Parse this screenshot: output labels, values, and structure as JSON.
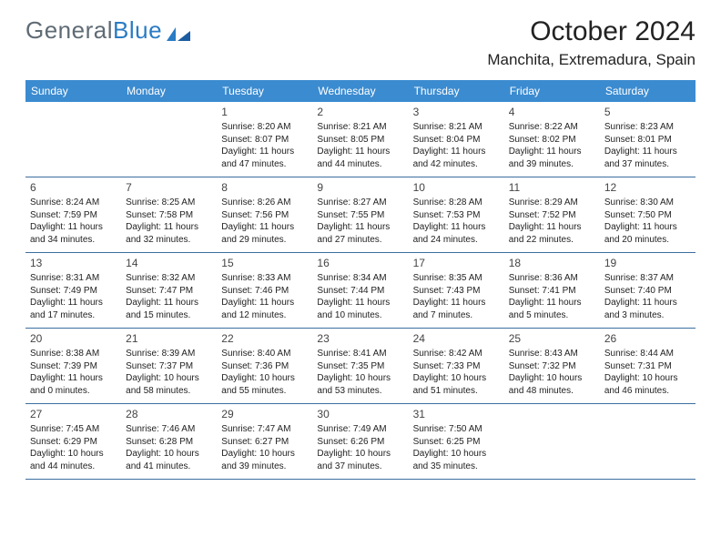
{
  "brand": {
    "part1": "General",
    "part2": "Blue"
  },
  "title": "October 2024",
  "location": "Manchita, Extremadura, Spain",
  "colors": {
    "header_bg": "#3b8bd0",
    "header_text": "#ffffff",
    "row_border": "#3b6ea0",
    "brand_gray": "#5f6b74",
    "brand_blue": "#2a7cc4",
    "text": "#222222",
    "background": "#ffffff"
  },
  "dow": [
    "Sunday",
    "Monday",
    "Tuesday",
    "Wednesday",
    "Thursday",
    "Friday",
    "Saturday"
  ],
  "weeks": [
    [
      null,
      null,
      {
        "n": "1",
        "sr": "8:20 AM",
        "ss": "8:07 PM",
        "dl": "11 hours and 47 minutes."
      },
      {
        "n": "2",
        "sr": "8:21 AM",
        "ss": "8:05 PM",
        "dl": "11 hours and 44 minutes."
      },
      {
        "n": "3",
        "sr": "8:21 AM",
        "ss": "8:04 PM",
        "dl": "11 hours and 42 minutes."
      },
      {
        "n": "4",
        "sr": "8:22 AM",
        "ss": "8:02 PM",
        "dl": "11 hours and 39 minutes."
      },
      {
        "n": "5",
        "sr": "8:23 AM",
        "ss": "8:01 PM",
        "dl": "11 hours and 37 minutes."
      }
    ],
    [
      {
        "n": "6",
        "sr": "8:24 AM",
        "ss": "7:59 PM",
        "dl": "11 hours and 34 minutes."
      },
      {
        "n": "7",
        "sr": "8:25 AM",
        "ss": "7:58 PM",
        "dl": "11 hours and 32 minutes."
      },
      {
        "n": "8",
        "sr": "8:26 AM",
        "ss": "7:56 PM",
        "dl": "11 hours and 29 minutes."
      },
      {
        "n": "9",
        "sr": "8:27 AM",
        "ss": "7:55 PM",
        "dl": "11 hours and 27 minutes."
      },
      {
        "n": "10",
        "sr": "8:28 AM",
        "ss": "7:53 PM",
        "dl": "11 hours and 24 minutes."
      },
      {
        "n": "11",
        "sr": "8:29 AM",
        "ss": "7:52 PM",
        "dl": "11 hours and 22 minutes."
      },
      {
        "n": "12",
        "sr": "8:30 AM",
        "ss": "7:50 PM",
        "dl": "11 hours and 20 minutes."
      }
    ],
    [
      {
        "n": "13",
        "sr": "8:31 AM",
        "ss": "7:49 PM",
        "dl": "11 hours and 17 minutes."
      },
      {
        "n": "14",
        "sr": "8:32 AM",
        "ss": "7:47 PM",
        "dl": "11 hours and 15 minutes."
      },
      {
        "n": "15",
        "sr": "8:33 AM",
        "ss": "7:46 PM",
        "dl": "11 hours and 12 minutes."
      },
      {
        "n": "16",
        "sr": "8:34 AM",
        "ss": "7:44 PM",
        "dl": "11 hours and 10 minutes."
      },
      {
        "n": "17",
        "sr": "8:35 AM",
        "ss": "7:43 PM",
        "dl": "11 hours and 7 minutes."
      },
      {
        "n": "18",
        "sr": "8:36 AM",
        "ss": "7:41 PM",
        "dl": "11 hours and 5 minutes."
      },
      {
        "n": "19",
        "sr": "8:37 AM",
        "ss": "7:40 PM",
        "dl": "11 hours and 3 minutes."
      }
    ],
    [
      {
        "n": "20",
        "sr": "8:38 AM",
        "ss": "7:39 PM",
        "dl": "11 hours and 0 minutes."
      },
      {
        "n": "21",
        "sr": "8:39 AM",
        "ss": "7:37 PM",
        "dl": "10 hours and 58 minutes."
      },
      {
        "n": "22",
        "sr": "8:40 AM",
        "ss": "7:36 PM",
        "dl": "10 hours and 55 minutes."
      },
      {
        "n": "23",
        "sr": "8:41 AM",
        "ss": "7:35 PM",
        "dl": "10 hours and 53 minutes."
      },
      {
        "n": "24",
        "sr": "8:42 AM",
        "ss": "7:33 PM",
        "dl": "10 hours and 51 minutes."
      },
      {
        "n": "25",
        "sr": "8:43 AM",
        "ss": "7:32 PM",
        "dl": "10 hours and 48 minutes."
      },
      {
        "n": "26",
        "sr": "8:44 AM",
        "ss": "7:31 PM",
        "dl": "10 hours and 46 minutes."
      }
    ],
    [
      {
        "n": "27",
        "sr": "7:45 AM",
        "ss": "6:29 PM",
        "dl": "10 hours and 44 minutes."
      },
      {
        "n": "28",
        "sr": "7:46 AM",
        "ss": "6:28 PM",
        "dl": "10 hours and 41 minutes."
      },
      {
        "n": "29",
        "sr": "7:47 AM",
        "ss": "6:27 PM",
        "dl": "10 hours and 39 minutes."
      },
      {
        "n": "30",
        "sr": "7:49 AM",
        "ss": "6:26 PM",
        "dl": "10 hours and 37 minutes."
      },
      {
        "n": "31",
        "sr": "7:50 AM",
        "ss": "6:25 PM",
        "dl": "10 hours and 35 minutes."
      },
      null,
      null
    ]
  ],
  "labels": {
    "sunrise": "Sunrise:",
    "sunset": "Sunset:",
    "daylight": "Daylight:"
  }
}
